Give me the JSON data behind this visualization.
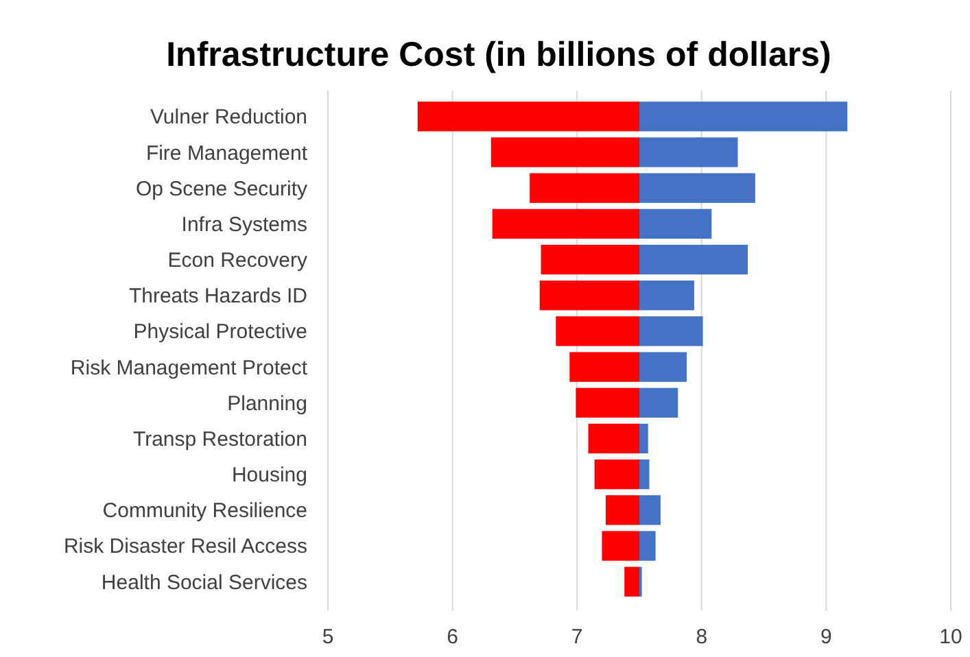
{
  "chart_data": {
    "type": "bar",
    "orientation": "horizontal",
    "title": "Infrastructure Cost (in billions of dollars)",
    "categories": [
      "Vulner Reduction",
      "Fire Management",
      "Op Scene Security",
      "Infra Systems",
      "Econ Recovery",
      "Threats Hazards ID",
      "Physical Protective",
      "Risk Management Protect",
      "Planning",
      "Transp Restoration",
      "Housing",
      "Community Resilience",
      "Risk Disaster Resil Access",
      "Health Social Services"
    ],
    "series": [
      {
        "color": "#ff0000",
        "base": [
          7.5,
          7.5,
          7.5,
          7.5,
          7.5,
          7.5,
          7.5,
          7.5,
          7.5,
          7.5,
          7.5,
          7.5,
          7.5,
          7.5
        ],
        "values": [
          -1.78,
          -1.19,
          -0.88,
          -1.18,
          -0.79,
          -0.8,
          -0.67,
          -0.56,
          -0.51,
          -0.41,
          -0.36,
          -0.27,
          -0.3,
          -0.12
        ]
      },
      {
        "color": "#4472c4",
        "base": [
          7.5,
          7.5,
          7.5,
          7.5,
          7.5,
          7.5,
          7.5,
          7.5,
          7.5,
          7.5,
          7.5,
          7.5,
          7.5,
          7.5
        ],
        "values": [
          1.67,
          0.79,
          0.93,
          0.58,
          0.87,
          0.44,
          0.51,
          0.38,
          0.31,
          0.07,
          0.08,
          0.17,
          0.13,
          0.02
        ]
      }
    ],
    "xlim": [
      5,
      10
    ],
    "xticks": [
      5,
      6,
      7,
      8,
      9,
      10
    ],
    "grid": "x"
  }
}
